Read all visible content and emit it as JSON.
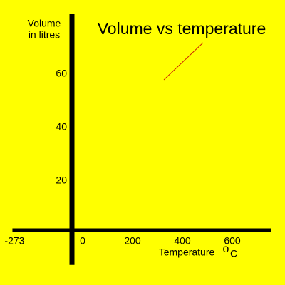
{
  "chart_data": {
    "type": "line",
    "title": "Volume  vs temperature",
    "y_label": [
      "Volume",
      "in litres"
    ],
    "x_label": "Temperature",
    "x_unit": [
      "o",
      "C"
    ],
    "series": [],
    "xlim": [
      -273,
      800
    ],
    "xticks": [
      -273,
      0,
      200,
      400,
      600
    ],
    "ylim": [
      -13,
      81
    ],
    "yticks": [
      20,
      40,
      60
    ],
    "grid": false,
    "axis_color": "#000000",
    "background": "#ffff00"
  }
}
